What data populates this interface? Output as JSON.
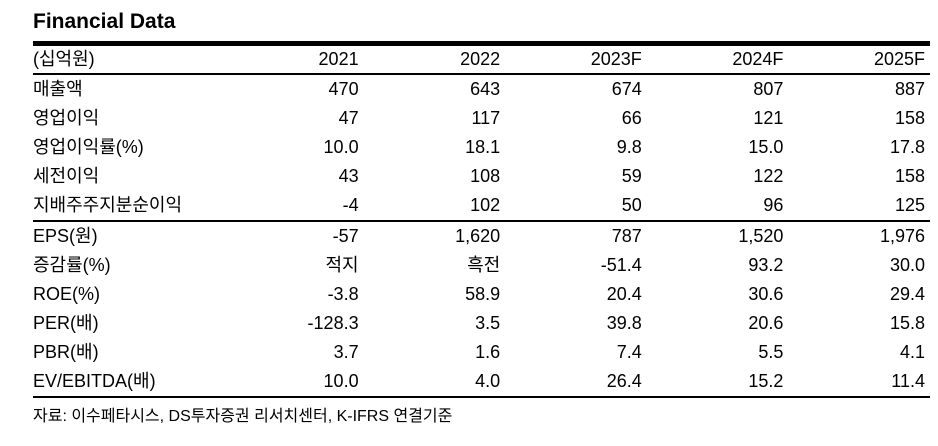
{
  "title": "Financial Data",
  "table": {
    "unit_label": "(십억원)",
    "columns": [
      "2021",
      "2022",
      "2023F",
      "2024F",
      "2025F"
    ],
    "rows": [
      {
        "label": "매출액",
        "values": [
          "470",
          "643",
          "674",
          "807",
          "887"
        ]
      },
      {
        "label": "영업이익",
        "values": [
          "47",
          "117",
          "66",
          "121",
          "158"
        ]
      },
      {
        "label": "영업이익률(%)",
        "values": [
          "10.0",
          "18.1",
          "9.8",
          "15.0",
          "17.8"
        ]
      },
      {
        "label": "세전이익",
        "values": [
          "43",
          "108",
          "59",
          "122",
          "158"
        ]
      },
      {
        "label": "지배주주지분순이익",
        "values": [
          "-4",
          "102",
          "50",
          "96",
          "125"
        ]
      },
      {
        "label": "EPS(원)",
        "values": [
          "-57",
          "1,620",
          "787",
          "1,520",
          "1,976"
        ]
      },
      {
        "label": "증감률(%)",
        "values": [
          "적지",
          "흑전",
          "-51.4",
          "93.2",
          "30.0"
        ]
      },
      {
        "label": "ROE(%)",
        "values": [
          "-3.8",
          "58.9",
          "20.4",
          "30.6",
          "29.4"
        ]
      },
      {
        "label": "PER(배)",
        "values": [
          "-128.3",
          "3.5",
          "39.8",
          "20.6",
          "15.8"
        ]
      },
      {
        "label": "PBR(배)",
        "values": [
          "3.7",
          "1.6",
          "7.4",
          "5.5",
          "4.1"
        ]
      },
      {
        "label": "EV/EBITDA(배)",
        "values": [
          "10.0",
          "4.0",
          "26.4",
          "15.2",
          "11.4"
        ]
      }
    ]
  },
  "footer": {
    "source": "자료: 이수페타시스, DS투자증권 리서치센터, K-IFRS 연결기준"
  },
  "colors": {
    "text": "#000000",
    "background": "#ffffff",
    "rule": "#000000"
  }
}
